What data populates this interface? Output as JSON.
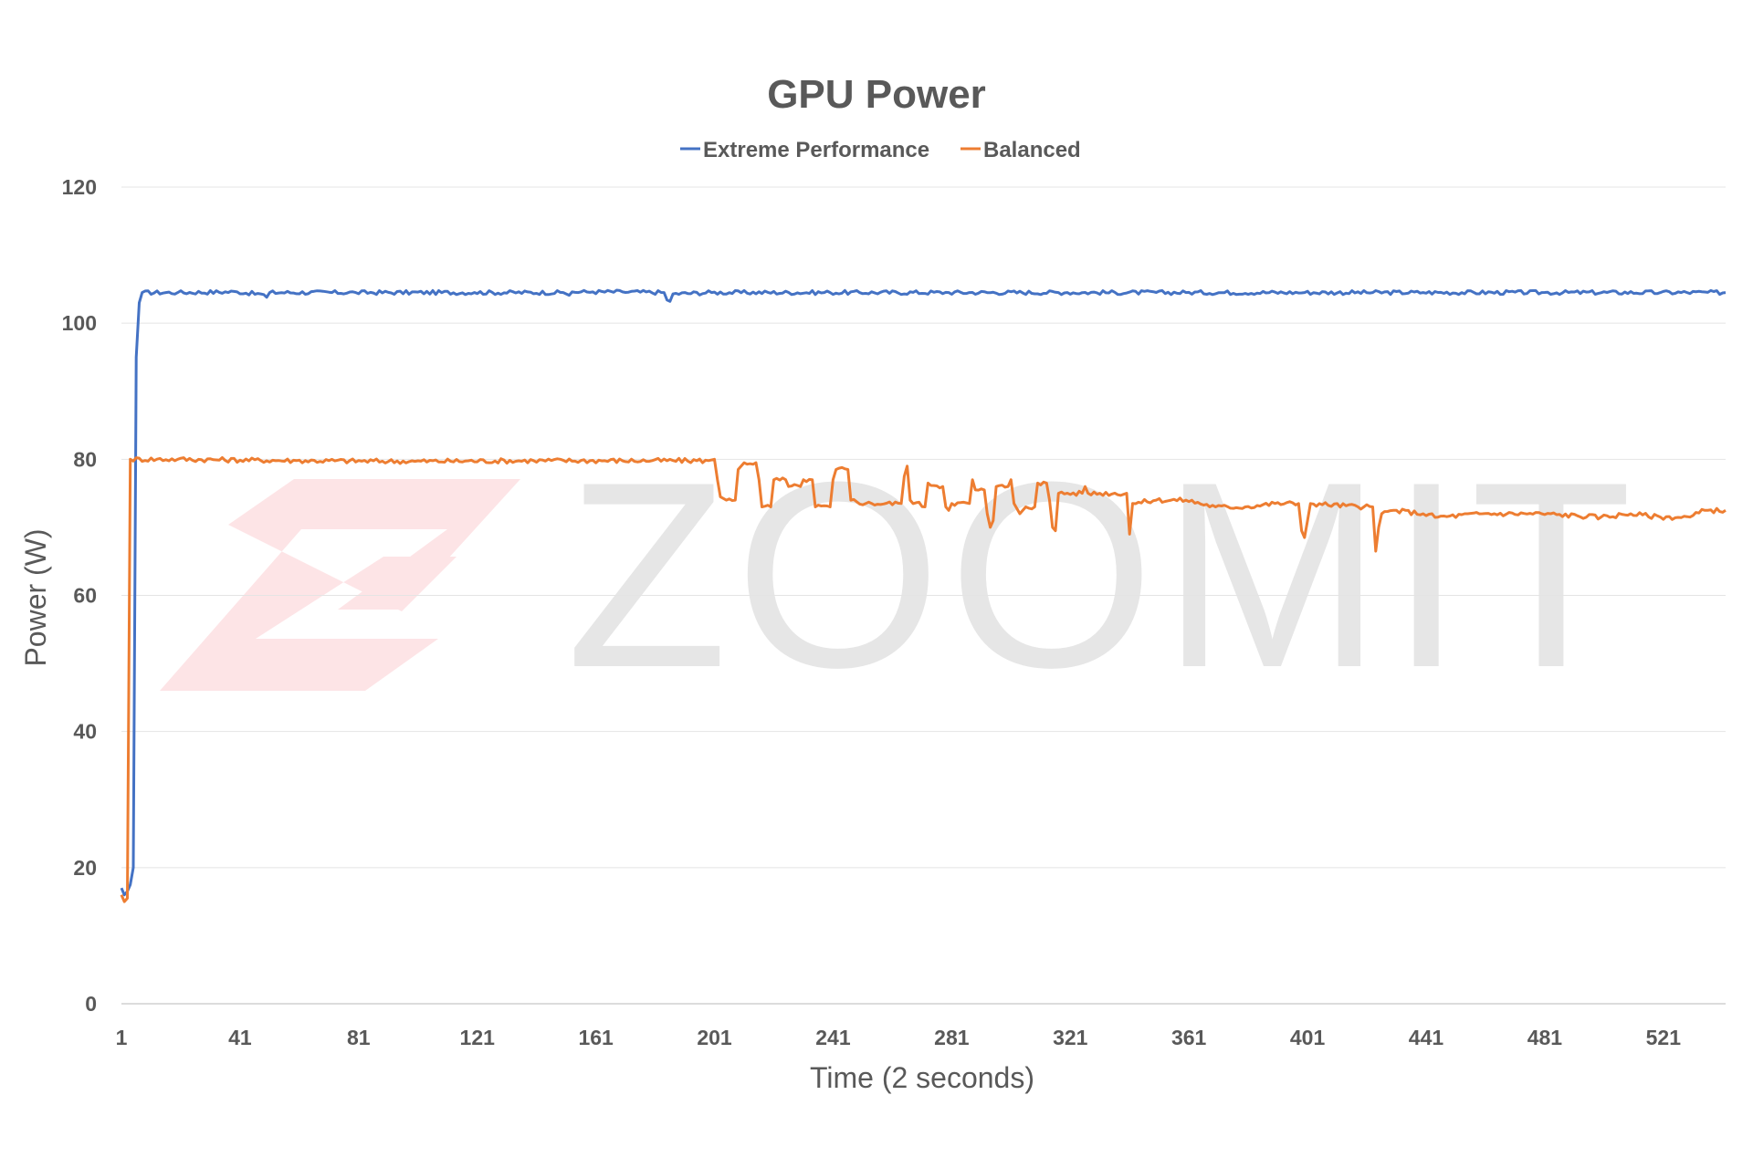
{
  "watermark": {
    "text": "ZOOMIT"
  },
  "chart_data": {
    "type": "line",
    "title": "GPU Power",
    "xlabel": "Time (2 seconds)",
    "ylabel": "Power (W)",
    "xlim": [
      1,
      542
    ],
    "ylim": [
      0,
      120
    ],
    "x_ticks": [
      "1",
      "41",
      "81",
      "121",
      "161",
      "201",
      "241",
      "281",
      "321",
      "361",
      "401",
      "441",
      "481",
      "521"
    ],
    "y_ticks": [
      "0",
      "20",
      "40",
      "60",
      "80",
      "100",
      "120"
    ],
    "grid": true,
    "legend_position": "top-center",
    "series": [
      {
        "name": "Extreme Performance",
        "color": "#4472C4",
        "points": [
          [
            1,
            17
          ],
          [
            2,
            16
          ],
          [
            3,
            16.5
          ],
          [
            4,
            17.5
          ],
          [
            5,
            20
          ],
          [
            6,
            95
          ],
          [
            7,
            103
          ],
          [
            8,
            104.5
          ],
          [
            20,
            104.5
          ],
          [
            40,
            104.6
          ],
          [
            49,
            104.2
          ],
          [
            50,
            103.8
          ],
          [
            51,
            104.5
          ],
          [
            80,
            104.5
          ],
          [
            120,
            104.5
          ],
          [
            150,
            104.5
          ],
          [
            152,
            104.1
          ],
          [
            153,
            104.6
          ],
          [
            160,
            104.6
          ],
          [
            170,
            104.6
          ],
          [
            184,
            104.5
          ],
          [
            185,
            103.4
          ],
          [
            186,
            103.2
          ],
          [
            187,
            104.3
          ],
          [
            200,
            104.5
          ],
          [
            240,
            104.5
          ],
          [
            280,
            104.5
          ],
          [
            320,
            104.5
          ],
          [
            360,
            104.5
          ],
          [
            400,
            104.5
          ],
          [
            440,
            104.5
          ],
          [
            480,
            104.5
          ],
          [
            520,
            104.5
          ],
          [
            542,
            104.5
          ]
        ]
      },
      {
        "name": "Balanced",
        "color": "#ED7D31",
        "points": [
          [
            1,
            16
          ],
          [
            2,
            15
          ],
          [
            3,
            15.5
          ],
          [
            4,
            80
          ],
          [
            20,
            80
          ],
          [
            60,
            79.8
          ],
          [
            100,
            79.7
          ],
          [
            140,
            79.8
          ],
          [
            180,
            79.8
          ],
          [
            199,
            79.8
          ],
          [
            201,
            80
          ],
          [
            202,
            77
          ],
          [
            203,
            74.5
          ],
          [
            205,
            74
          ],
          [
            208,
            74
          ],
          [
            209,
            78.5
          ],
          [
            211,
            79.5
          ],
          [
            215,
            79.5
          ],
          [
            216,
            77
          ],
          [
            217,
            73
          ],
          [
            220,
            73
          ],
          [
            221,
            77
          ],
          [
            225,
            77
          ],
          [
            226,
            76
          ],
          [
            230,
            76
          ],
          [
            231,
            77
          ],
          [
            234,
            77
          ],
          [
            235,
            73
          ],
          [
            240,
            73
          ],
          [
            241,
            77
          ],
          [
            242,
            78.5
          ],
          [
            246,
            78.5
          ],
          [
            247,
            74
          ],
          [
            252,
            73.5
          ],
          [
            264,
            73.5
          ],
          [
            265,
            77.5
          ],
          [
            266,
            79
          ],
          [
            267,
            74
          ],
          [
            272,
            73
          ],
          [
            273,
            76.5
          ],
          [
            278,
            76
          ],
          [
            279,
            73
          ],
          [
            280,
            72.5
          ],
          [
            281,
            73.5
          ],
          [
            287,
            73.5
          ],
          [
            288,
            77
          ],
          [
            289,
            75.5
          ],
          [
            292,
            75.5
          ],
          [
            293,
            72
          ],
          [
            294,
            70
          ],
          [
            295,
            71
          ],
          [
            296,
            76
          ],
          [
            300,
            76
          ],
          [
            301,
            77
          ],
          [
            302,
            73.5
          ],
          [
            304,
            72
          ],
          [
            306,
            73
          ],
          [
            309,
            73
          ],
          [
            310,
            76.5
          ],
          [
            313,
            76.5
          ],
          [
            314,
            74
          ],
          [
            315,
            70
          ],
          [
            316,
            69.5
          ],
          [
            317,
            75
          ],
          [
            325,
            75
          ],
          [
            326,
            76
          ],
          [
            327,
            75
          ],
          [
            340,
            75
          ],
          [
            341,
            69
          ],
          [
            342,
            73.5
          ],
          [
            350,
            74
          ],
          [
            360,
            74
          ],
          [
            370,
            73
          ],
          [
            380,
            73
          ],
          [
            390,
            73.5
          ],
          [
            398,
            73.5
          ],
          [
            399,
            69.5
          ],
          [
            400,
            68.5
          ],
          [
            401,
            71
          ],
          [
            402,
            73.5
          ],
          [
            420,
            73
          ],
          [
            423,
            73
          ],
          [
            424,
            66.5
          ],
          [
            425,
            70
          ],
          [
            426,
            72
          ],
          [
            430,
            72.5
          ],
          [
            440,
            72
          ],
          [
            445,
            71.5
          ],
          [
            460,
            72
          ],
          [
            480,
            72
          ],
          [
            500,
            71.5
          ],
          [
            510,
            72
          ],
          [
            520,
            71.5
          ],
          [
            530,
            71.5
          ],
          [
            535,
            72.5
          ],
          [
            542,
            72.5
          ]
        ]
      }
    ]
  }
}
